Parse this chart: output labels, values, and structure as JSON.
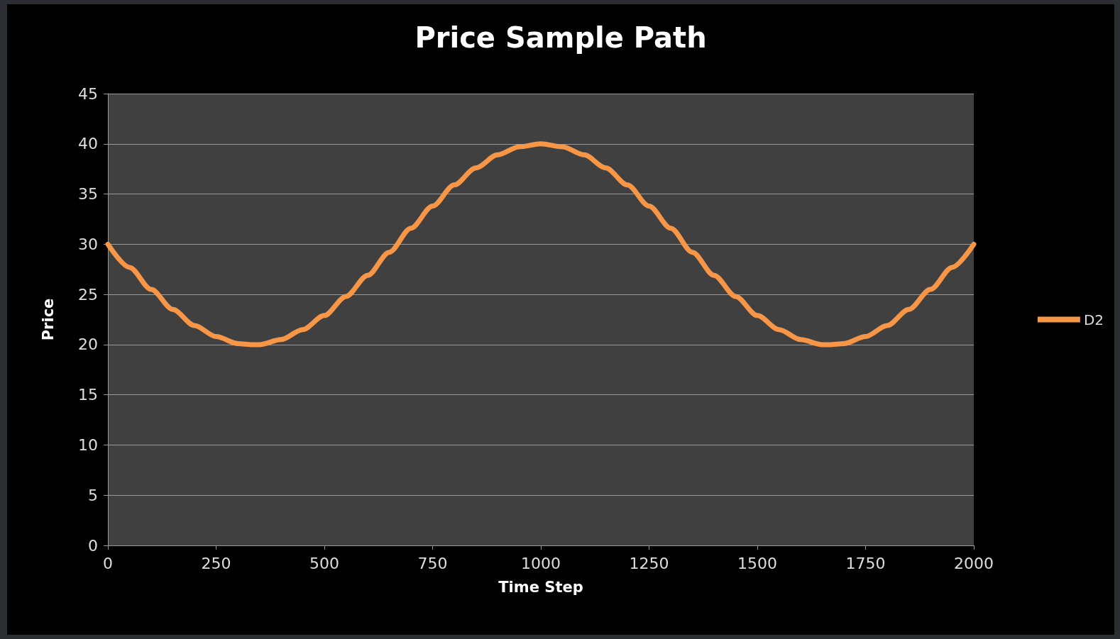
{
  "chart_data": {
    "type": "line",
    "title": "Price Sample Path",
    "xlabel": "Time Step",
    "ylabel": "Price",
    "x": [
      0,
      50,
      100,
      150,
      200,
      250,
      300,
      333,
      350,
      400,
      450,
      500,
      550,
      600,
      650,
      700,
      750,
      800,
      850,
      900,
      950,
      1000,
      1050,
      1100,
      1150,
      1200,
      1250,
      1300,
      1350,
      1400,
      1450,
      1500,
      1550,
      1600,
      1650,
      1667,
      1700,
      1750,
      1800,
      1850,
      1900,
      1950,
      2000
    ],
    "series": [
      {
        "name": "D2",
        "color": "#f79646",
        "values": [
          30,
          27.7,
          25.5,
          23.5,
          21.9,
          20.8,
          20.1,
          20,
          20,
          20.5,
          21.5,
          22.9,
          24.8,
          26.9,
          29.2,
          31.6,
          33.8,
          35.9,
          37.6,
          38.9,
          39.7,
          40,
          39.7,
          38.9,
          37.6,
          35.9,
          33.8,
          31.6,
          29.2,
          26.9,
          24.8,
          22.9,
          21.5,
          20.5,
          20,
          20,
          20.1,
          20.8,
          21.9,
          23.5,
          25.5,
          27.7,
          30
        ]
      }
    ],
    "xlim": [
      0,
      2000
    ],
    "xticks": [
      0,
      250,
      500,
      750,
      1000,
      1250,
      1500,
      1750,
      2000
    ],
    "ylim": [
      0,
      45
    ],
    "yticks": [
      0,
      5,
      10,
      15,
      20,
      25,
      30,
      35,
      40,
      45
    ],
    "grid": "y",
    "legend": "right",
    "marker": "none",
    "line_style": "solid"
  }
}
